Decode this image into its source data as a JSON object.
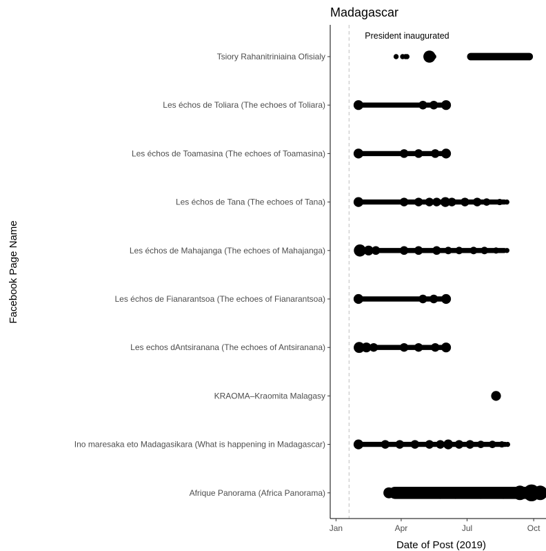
{
  "chart_data": {
    "type": "scatter",
    "title": "Madagascar",
    "xlabel": "Date of Post (2019)",
    "ylabel": "Facebook Page Name",
    "x_ticks": [
      {
        "label": "Jan",
        "date": "2019-01-01"
      },
      {
        "label": "Apr",
        "date": "2019-04-01"
      },
      {
        "label": "Jul",
        "date": "2019-07-01"
      },
      {
        "label": "Oct",
        "date": "2019-10-01"
      }
    ],
    "xlim": [
      "2018-12-24",
      "2019-10-18"
    ],
    "grid": false,
    "reference_line": {
      "date": "2019-01-19",
      "label": "President inaugurated",
      "style": "dashed",
      "color": "#bfbfbf"
    },
    "point_color": "#000000",
    "categories": [
      "Tsiory Rahanitriniaina Ofisialy",
      "Les échos de Toliara (The echoes of Toliara)",
      "Les échos de Toamasina (The echoes of Toamasina)",
      "Les échos de Tana (The echoes of Tana)",
      "Les échos de Mahajanga (The echoes of Mahajanga)",
      "Les échos de Fianarantsoa (The echoes of Fianarantsoa)",
      "Les echos dAntsiranana (The echoes of Antsiranana)",
      "KRAOMA–Kraomita Malagasy",
      "Ino maresaka eto Madagasikara (What is happening in Madagascar)",
      "Afrique Panorama (Africa Panorama)"
    ],
    "series": [
      {
        "category": "Tsiory Rahanitriniaina Ofisialy",
        "points": [
          {
            "date": "2019-03-25",
            "size": 1
          },
          {
            "date": "2019-04-03",
            "size": 1
          },
          {
            "date": "2019-04-07",
            "size": 1
          },
          {
            "date": "2019-04-09",
            "size": 1
          },
          {
            "date": "2019-05-10",
            "size": 4
          },
          {
            "date": "2019-05-14",
            "size": 1
          },
          {
            "date": "2019-05-16",
            "size": 1
          }
        ],
        "ranges": [
          [
            "2019-07-01",
            "2019-09-30"
          ]
        ],
        "range_size": 2
      },
      {
        "category": "Les échos de Toliara (The echoes of Toliara)",
        "points": [
          {
            "date": "2019-02-01",
            "size": 3
          },
          {
            "date": "2019-05-01",
            "size": 2.5
          },
          {
            "date": "2019-05-16",
            "size": 2.5
          },
          {
            "date": "2019-06-02",
            "size": 3
          }
        ],
        "ranges": [
          [
            "2019-02-01",
            "2019-06-02"
          ]
        ],
        "range_size": 1
      },
      {
        "category": "Les échos de Toamasina (The echoes of Toamasina)",
        "points": [
          {
            "date": "2019-02-01",
            "size": 3
          },
          {
            "date": "2019-04-05",
            "size": 2.5
          },
          {
            "date": "2019-04-25",
            "size": 2.5
          },
          {
            "date": "2019-05-18",
            "size": 2.5
          },
          {
            "date": "2019-06-02",
            "size": 3
          }
        ],
        "ranges": [
          [
            "2019-02-01",
            "2019-06-02"
          ]
        ],
        "range_size": 1
      },
      {
        "category": "Les échos de Tana (The echoes of Tana)",
        "points": [
          {
            "date": "2019-02-01",
            "size": 3
          },
          {
            "date": "2019-04-05",
            "size": 2.5
          },
          {
            "date": "2019-04-25",
            "size": 2.5
          },
          {
            "date": "2019-05-10",
            "size": 2.5
          },
          {
            "date": "2019-05-20",
            "size": 2.5
          },
          {
            "date": "2019-06-01",
            "size": 3
          },
          {
            "date": "2019-06-10",
            "size": 2.5
          },
          {
            "date": "2019-06-28",
            "size": 2.5
          },
          {
            "date": "2019-07-15",
            "size": 2.5
          },
          {
            "date": "2019-07-28",
            "size": 2
          },
          {
            "date": "2019-08-15",
            "size": 1.5
          },
          {
            "date": "2019-08-25",
            "size": 1
          }
        ],
        "ranges": [
          [
            "2019-02-01",
            "2019-08-25"
          ]
        ],
        "range_size": 1
      },
      {
        "category": "Les échos de Mahajanga (The echoes of Mahajanga)",
        "points": [
          {
            "date": "2019-02-03",
            "size": 4
          },
          {
            "date": "2019-02-15",
            "size": 3
          },
          {
            "date": "2019-02-25",
            "size": 2.5
          },
          {
            "date": "2019-04-05",
            "size": 2.5
          },
          {
            "date": "2019-04-25",
            "size": 2.5
          },
          {
            "date": "2019-05-20",
            "size": 2.5
          },
          {
            "date": "2019-06-05",
            "size": 2
          },
          {
            "date": "2019-06-20",
            "size": 2
          },
          {
            "date": "2019-07-10",
            "size": 2
          },
          {
            "date": "2019-07-25",
            "size": 2
          },
          {
            "date": "2019-08-10",
            "size": 1.5
          },
          {
            "date": "2019-08-25",
            "size": 1
          }
        ],
        "ranges": [
          [
            "2019-02-01",
            "2019-08-25"
          ]
        ],
        "range_size": 1
      },
      {
        "category": "Les échos de Fianarantsoa (The echoes of Fianarantsoa)",
        "points": [
          {
            "date": "2019-02-01",
            "size": 3
          },
          {
            "date": "2019-05-01",
            "size": 2.5
          },
          {
            "date": "2019-05-16",
            "size": 2.5
          },
          {
            "date": "2019-06-02",
            "size": 3
          }
        ],
        "ranges": [
          [
            "2019-02-01",
            "2019-06-02"
          ]
        ],
        "range_size": 1
      },
      {
        "category": "Les echos dAntsiranana (The echoes of Antsiranana)",
        "points": [
          {
            "date": "2019-02-02",
            "size": 3.5
          },
          {
            "date": "2019-02-12",
            "size": 3
          },
          {
            "date": "2019-02-22",
            "size": 2.5
          },
          {
            "date": "2019-04-05",
            "size": 2.5
          },
          {
            "date": "2019-04-25",
            "size": 2.5
          },
          {
            "date": "2019-05-18",
            "size": 2.5
          },
          {
            "date": "2019-06-02",
            "size": 3
          }
        ],
        "ranges": [
          [
            "2019-02-01",
            "2019-06-02"
          ]
        ],
        "range_size": 1
      },
      {
        "category": "KRAOMA–Kraomita Malagasy",
        "points": [
          {
            "date": "2019-08-10",
            "size": 3
          }
        ],
        "ranges": [],
        "range_size": 1
      },
      {
        "category": "Ino maresaka eto Madagasikara (What is happening in Madagascar)",
        "points": [
          {
            "date": "2019-02-01",
            "size": 3
          },
          {
            "date": "2019-03-10",
            "size": 2.5
          },
          {
            "date": "2019-03-30",
            "size": 2.5
          },
          {
            "date": "2019-04-20",
            "size": 2.5
          },
          {
            "date": "2019-05-10",
            "size": 2.5
          },
          {
            "date": "2019-05-25",
            "size": 2.5
          },
          {
            "date": "2019-06-05",
            "size": 3
          },
          {
            "date": "2019-06-20",
            "size": 2.5
          },
          {
            "date": "2019-07-05",
            "size": 2.5
          },
          {
            "date": "2019-07-20",
            "size": 2
          },
          {
            "date": "2019-08-05",
            "size": 2
          },
          {
            "date": "2019-08-18",
            "size": 1.5
          },
          {
            "date": "2019-08-26",
            "size": 1
          }
        ],
        "ranges": [
          [
            "2019-02-01",
            "2019-08-26"
          ]
        ],
        "range_size": 1
      },
      {
        "category": "Afrique Panorama (Africa Panorama)",
        "points": [
          {
            "date": "2019-03-15",
            "size": 3.5
          },
          {
            "date": "2019-05-25",
            "size": 4
          },
          {
            "date": "2019-06-15",
            "size": 4
          },
          {
            "date": "2019-07-20",
            "size": 4
          },
          {
            "date": "2019-08-20",
            "size": 4
          },
          {
            "date": "2019-09-12",
            "size": 5
          },
          {
            "date": "2019-09-28",
            "size": 6
          },
          {
            "date": "2019-10-10",
            "size": 5
          }
        ],
        "ranges": [
          [
            "2019-03-15",
            "2019-10-18"
          ]
        ],
        "range_size": 4
      }
    ]
  }
}
